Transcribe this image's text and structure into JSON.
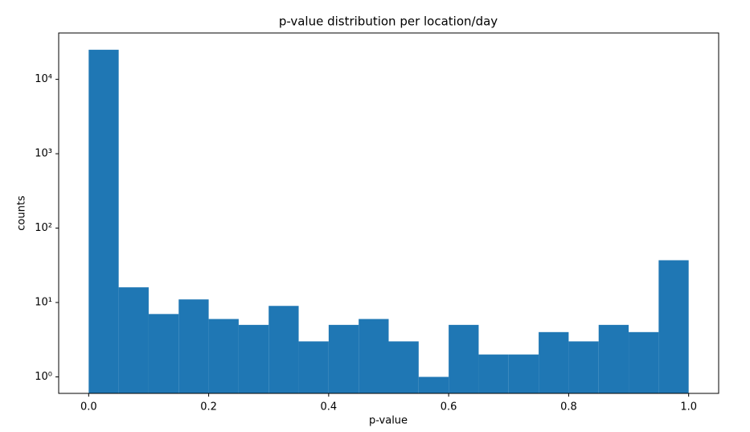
{
  "chart_data": {
    "type": "histogram",
    "title": "p-value distribution per location/day",
    "xlabel": "p-value",
    "ylabel": "counts",
    "bins": [
      0,
      0.05,
      0.1,
      0.15,
      0.2,
      0.25,
      0.3,
      0.35,
      0.4,
      0.45,
      0.5,
      0.55,
      0.6,
      0.65,
      0.7,
      0.75,
      0.8,
      0.85,
      0.9,
      0.95,
      1
    ],
    "counts": [
      25000,
      16,
      7,
      11,
      6,
      5,
      9,
      3,
      5,
      6,
      3,
      1,
      5,
      2,
      2,
      4,
      3,
      5,
      4,
      37
    ],
    "color": "#1f77b4",
    "xlim": [
      -0.05,
      1.05
    ],
    "xticks": [
      {
        "value": 0,
        "label": "0.0"
      },
      0.2,
      0.4,
      0.6,
      0.8,
      {
        "value": 1,
        "label": "1.0"
      }
    ],
    "ylim": [
      0.6,
      42000
    ],
    "log_y": true,
    "yticks": [
      {
        "value": 1,
        "label": "10⁰"
      },
      {
        "value": 10,
        "label": "10¹"
      },
      {
        "value": 100,
        "label": "10²"
      },
      {
        "value": 1000,
        "label": "10³"
      },
      {
        "value": 10000,
        "label": "10⁴"
      }
    ],
    "grid": false
  }
}
